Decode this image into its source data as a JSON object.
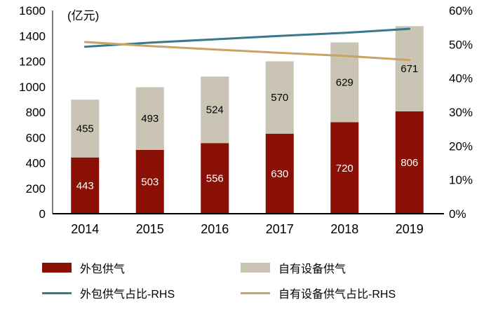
{
  "chart_data": {
    "type": "bar",
    "subtype": "stacked-bars-with-lines",
    "categories": [
      "2014",
      "2015",
      "2016",
      "2017",
      "2018",
      "2019"
    ],
    "series": [
      {
        "name": "外包供气",
        "type": "bar",
        "axis": "left",
        "color": "#8a0f04",
        "label_color": "#ffffff",
        "values": [
          443,
          503,
          556,
          630,
          720,
          806
        ]
      },
      {
        "name": "自有设备供气",
        "type": "bar",
        "axis": "left",
        "color": "#c9c4b4",
        "label_color": "#000000",
        "values": [
          455,
          493,
          524,
          570,
          629,
          671
        ]
      },
      {
        "name": "外包供气占比-RHS",
        "type": "line",
        "axis": "right",
        "color": "#39798c",
        "values": [
          49.3,
          50.5,
          51.5,
          52.5,
          53.4,
          54.6
        ]
      },
      {
        "name": "自有设备供气占比-RHS",
        "type": "line",
        "axis": "right",
        "color": "#c9a264",
        "values": [
          50.7,
          49.5,
          48.5,
          47.5,
          46.6,
          45.4
        ]
      }
    ],
    "left_axis": {
      "title": "(亿元)",
      "min": 0,
      "max": 1600,
      "step": 200,
      "tick_labels": [
        "0",
        "200",
        "400",
        "600",
        "800",
        "1000",
        "1200",
        "1400",
        "1600"
      ]
    },
    "right_axis": {
      "min": 0,
      "max": 60,
      "step": 10,
      "tick_labels": [
        "0%",
        "10%",
        "20%",
        "30%",
        "40%",
        "50%",
        "60%"
      ]
    },
    "grid": false,
    "bar_labels": true,
    "legend_position": "bottom"
  }
}
